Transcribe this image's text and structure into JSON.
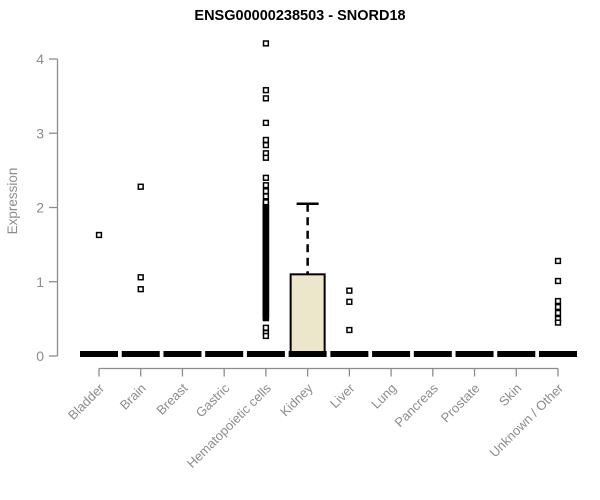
{
  "chart_data": {
    "type": "boxplot",
    "title": "ENSG00000238503 - SNORD18",
    "ylabel": "Expression",
    "xlabel": "",
    "ylim": [
      0,
      4.3
    ],
    "yticks": [
      0,
      1,
      2,
      3,
      4
    ],
    "grid": false,
    "legend": "none",
    "categories": [
      "Bladder",
      "Brain",
      "Breast",
      "Gastric",
      "Hematopoietic cells",
      "Kidney",
      "Liver",
      "Lung",
      "Pancreas",
      "Prostate",
      "Skin",
      "Unknown / Other"
    ],
    "boxes": [
      {
        "category": "Bladder",
        "q1": 0,
        "median": 0,
        "q3": 0,
        "whisker_low": 0,
        "whisker_high": 0,
        "outliers": [
          1.63
        ]
      },
      {
        "category": "Brain",
        "q1": 0,
        "median": 0,
        "q3": 0,
        "whisker_low": 0,
        "whisker_high": 0,
        "outliers": [
          2.28,
          1.06,
          0.9
        ]
      },
      {
        "category": "Breast",
        "q1": 0,
        "median": 0,
        "q3": 0,
        "whisker_low": 0,
        "whisker_high": 0,
        "outliers": []
      },
      {
        "category": "Gastric",
        "q1": 0,
        "median": 0,
        "q3": 0,
        "whisker_low": 0,
        "whisker_high": 0,
        "outliers": []
      },
      {
        "category": "Hematopoietic cells",
        "q1": 0,
        "median": 0,
        "q3": 0,
        "whisker_low": 0,
        "whisker_high": 0,
        "outliers": [
          4.21,
          3.58,
          3.47,
          3.14,
          2.91,
          2.84,
          2.73,
          2.67,
          2.4,
          2.3,
          2.22,
          2.15,
          0.38,
          0.31,
          0.27
        ],
        "dense_stack": {
          "min": 0.51,
          "max": 2.07,
          "count": 100
        }
      },
      {
        "category": "Kidney",
        "q1": 0,
        "median": 0,
        "q3": 1.1,
        "whisker_low": 0,
        "whisker_high": 2.05,
        "outliers": []
      },
      {
        "category": "Liver",
        "q1": 0,
        "median": 0,
        "q3": 0,
        "whisker_low": 0,
        "whisker_high": 0,
        "outliers": [
          0.88,
          0.73,
          0.35
        ]
      },
      {
        "category": "Lung",
        "q1": 0,
        "median": 0,
        "q3": 0,
        "whisker_low": 0,
        "whisker_high": 0,
        "outliers": []
      },
      {
        "category": "Pancreas",
        "q1": 0,
        "median": 0,
        "q3": 0,
        "whisker_low": 0,
        "whisker_high": 0,
        "outliers": []
      },
      {
        "category": "Prostate",
        "q1": 0,
        "median": 0,
        "q3": 0,
        "whisker_low": 0,
        "whisker_high": 0,
        "outliers": []
      },
      {
        "category": "Skin",
        "q1": 0,
        "median": 0,
        "q3": 0,
        "whisker_low": 0,
        "whisker_high": 0,
        "outliers": []
      },
      {
        "category": "Unknown / Other",
        "q1": 0,
        "median": 0,
        "q3": 0,
        "whisker_low": 0,
        "whisker_high": 0,
        "outliers": [
          1.28,
          1.01,
          0.74,
          0.66,
          0.58,
          0.5,
          0.45
        ]
      }
    ],
    "colors": {
      "box_fill": "#ECE7CB",
      "box_border": "#000000",
      "data_color": "#000000",
      "axis_color": "#8C8C8C",
      "label_color": "#8C8C8C",
      "title_color": "#000000",
      "background": "#FFFFFF"
    }
  }
}
